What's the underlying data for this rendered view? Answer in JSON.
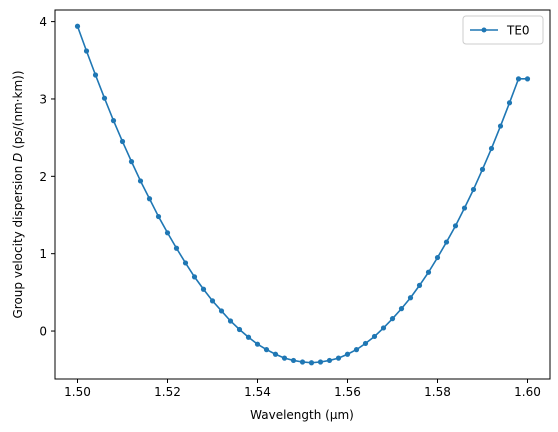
{
  "chart_data": {
    "type": "line",
    "title": "",
    "xlabel": "Wavelength (μm)",
    "ylabel_prefix": "Group velocity dispersion ",
    "ylabel_symbol": "D",
    "ylabel_suffix": " (ps/(nm·km))",
    "xlim": [
      1.495,
      1.605
    ],
    "ylim": [
      -0.62,
      4.15
    ],
    "xticks": [
      1.5,
      1.52,
      1.54,
      1.56,
      1.58,
      1.6
    ],
    "xtick_labels": [
      "1.50",
      "1.52",
      "1.54",
      "1.56",
      "1.58",
      "1.60"
    ],
    "yticks": [
      0,
      1,
      2,
      3,
      4
    ],
    "ytick_labels": [
      "0",
      "1",
      "2",
      "3",
      "4"
    ],
    "grid": false,
    "legend_position": "top-right",
    "series": [
      {
        "name": "TE0",
        "color": "#1f77b4",
        "marker": "circle",
        "x": [
          1.5,
          1.502,
          1.504,
          1.506,
          1.508,
          1.51,
          1.512,
          1.514,
          1.516,
          1.518,
          1.52,
          1.522,
          1.524,
          1.526,
          1.528,
          1.53,
          1.532,
          1.534,
          1.536,
          1.538,
          1.54,
          1.542,
          1.544,
          1.546,
          1.548,
          1.55,
          1.552,
          1.554,
          1.556,
          1.558,
          1.56,
          1.562,
          1.564,
          1.566,
          1.568,
          1.57,
          1.572,
          1.574,
          1.576,
          1.578,
          1.58,
          1.582,
          1.584,
          1.586,
          1.588,
          1.59,
          1.592,
          1.594,
          1.596,
          1.598,
          1.6
        ],
        "y": [
          3.94,
          3.62,
          3.31,
          3.01,
          2.72,
          2.45,
          2.19,
          1.94,
          1.71,
          1.48,
          1.27,
          1.07,
          0.88,
          0.7,
          0.54,
          0.39,
          0.26,
          0.13,
          0.02,
          -0.08,
          -0.17,
          -0.24,
          -0.3,
          -0.35,
          -0.38,
          -0.4,
          -0.41,
          -0.4,
          -0.38,
          -0.35,
          -0.3,
          -0.24,
          -0.16,
          -0.07,
          0.04,
          0.16,
          0.29,
          0.43,
          0.59,
          0.76,
          0.95,
          1.15,
          1.36,
          1.59,
          1.83,
          2.09,
          2.36,
          2.65,
          2.95,
          3.26,
          3.26
        ]
      }
    ]
  }
}
